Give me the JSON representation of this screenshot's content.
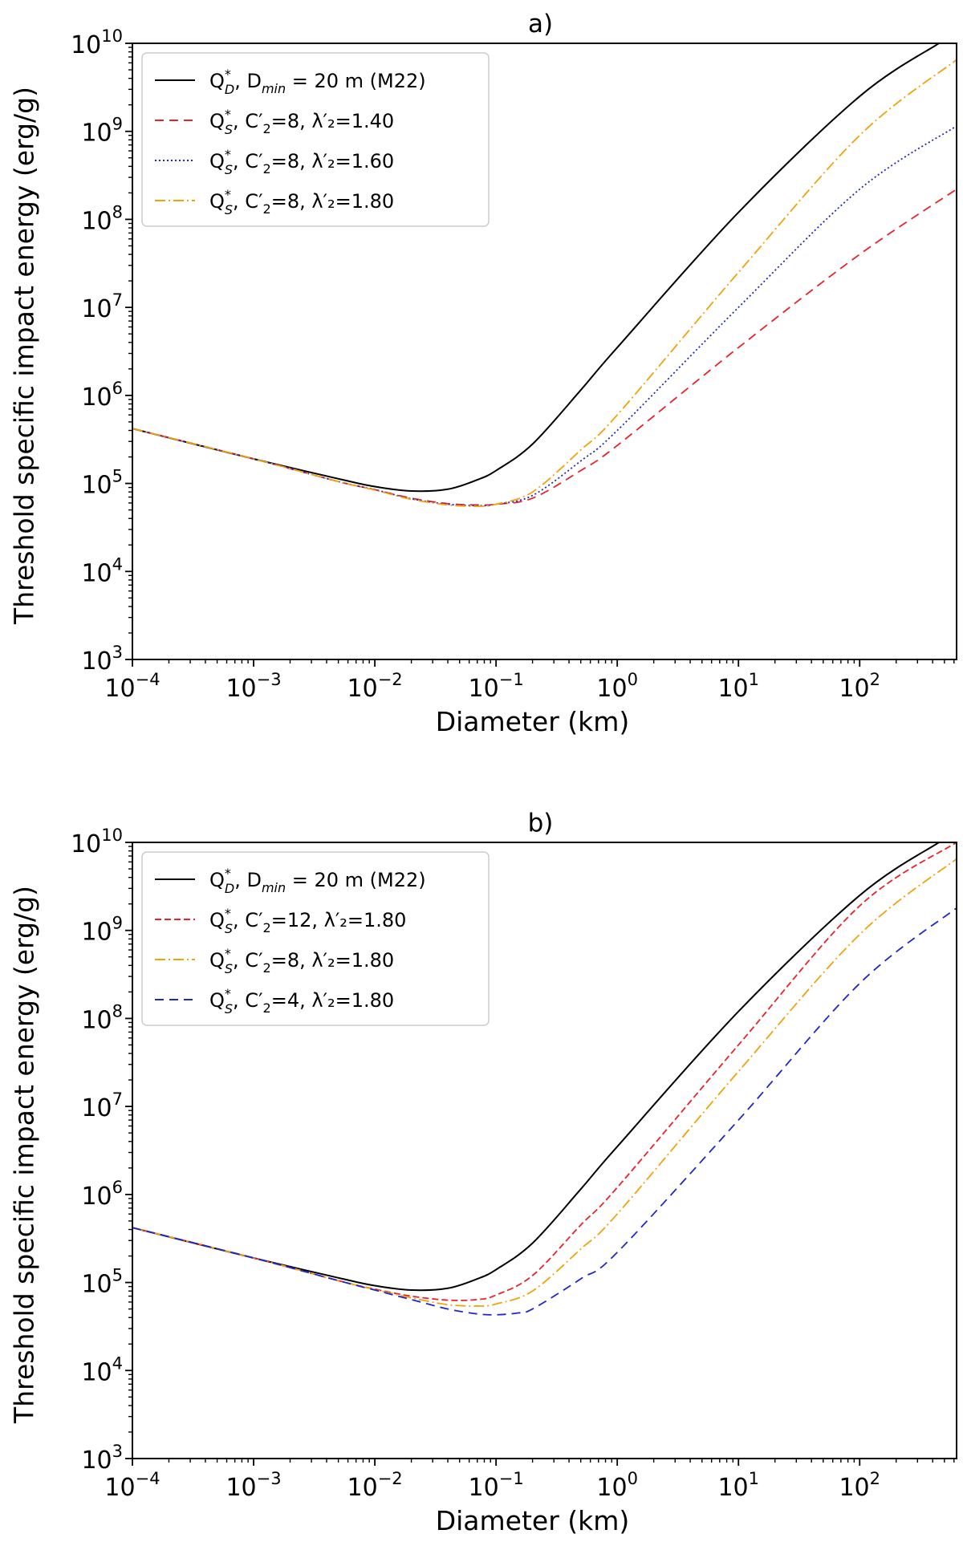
{
  "chart_data": [
    {
      "type": "line",
      "title": "a)",
      "xlabel": "Diameter (km)",
      "ylabel": "Threshold specific impact energy (erg/g)",
      "xscale": "log",
      "yscale": "log",
      "xlim": [
        0.0001,
        630
      ],
      "ylim": [
        1000,
        10000000000
      ],
      "x_ticks": [
        {
          "base": "10",
          "exp": "−4",
          "value": 0.0001
        },
        {
          "base": "10",
          "exp": "−3",
          "value": 0.001
        },
        {
          "base": "10",
          "exp": "−2",
          "value": 0.01
        },
        {
          "base": "10",
          "exp": "−1",
          "value": 0.1
        },
        {
          "base": "10",
          "exp": "0",
          "value": 1
        },
        {
          "base": "10",
          "exp": "1",
          "value": 10
        },
        {
          "base": "10",
          "exp": "2",
          "value": 100
        }
      ],
      "y_ticks": [
        {
          "base": "10",
          "exp": "3",
          "value": 1000
        },
        {
          "base": "10",
          "exp": "4",
          "value": 10000
        },
        {
          "base": "10",
          "exp": "5",
          "value": 100000
        },
        {
          "base": "10",
          "exp": "6",
          "value": 1000000
        },
        {
          "base": "10",
          "exp": "7",
          "value": 10000000
        },
        {
          "base": "10",
          "exp": "8",
          "value": 100000000
        },
        {
          "base": "10",
          "exp": "9",
          "value": 1000000000
        },
        {
          "base": "10",
          "exp": "10",
          "value": 10000000000
        }
      ],
      "legend_position": "top-left",
      "series": [
        {
          "name": "Q*D, Dmin = 20 m (M22)",
          "legend": {
            "a": "Q",
            "sup": "*",
            "sub": "D",
            "rest": ", D",
            "sub2": "min",
            "tail": " = 20 m (M22)"
          },
          "color": "#000000",
          "style": "solid",
          "x": [
            0.0001,
            0.001,
            0.005,
            0.01,
            0.02,
            0.04,
            0.07,
            0.1,
            0.2,
            0.5,
            1,
            10,
            100,
            450
          ],
          "y": [
            420000,
            190000,
            113000,
            92000,
            82000,
            86000,
            110000,
            140000,
            280000,
            1150000,
            3500000,
            120000000,
            2500000000,
            10000000000
          ]
        },
        {
          "name": "Q*S, C′2=8, λ′2=1.40",
          "legend": {
            "a": "Q",
            "sup": "*",
            "sub": "S",
            "rest": ", C′",
            "sub2": "2",
            "tail": "=8, λ′₂=1.40"
          },
          "color": "#e8232a",
          "style": "dashed",
          "x": [
            0.0001,
            0.001,
            0.005,
            0.01,
            0.02,
            0.04,
            0.07,
            0.1,
            0.2,
            0.5,
            1,
            10,
            100,
            630
          ],
          "y": [
            420000,
            190000,
            105000,
            85000,
            68000,
            59000,
            57000,
            58000,
            68000,
            140000,
            270000,
            3500000,
            40000000,
            220000000
          ]
        },
        {
          "name": "Q*S, C′2=8, λ′2=1.60",
          "legend": {
            "a": "Q",
            "sup": "*",
            "sub": "S",
            "rest": ", C′",
            "sub2": "2",
            "tail": "=8, λ′₂=1.60"
          },
          "color": "#1f27c8",
          "style": "dotted",
          "x": [
            0.0001,
            0.001,
            0.005,
            0.01,
            0.02,
            0.04,
            0.07,
            0.1,
            0.2,
            0.5,
            1,
            10,
            100,
            630
          ],
          "y": [
            420000,
            190000,
            105000,
            85000,
            67000,
            58000,
            56000,
            58000,
            73000,
            180000,
            400000,
            10000000,
            220000000,
            1150000000
          ]
        },
        {
          "name": "Q*S, C′2=8, λ′2=1.80",
          "legend": {
            "a": "Q",
            "sup": "*",
            "sub": "S",
            "rest": ", C′",
            "sub2": "2",
            "tail": "=8, λ′₂=1.80"
          },
          "color": "#f0a30a",
          "style": "dashdot",
          "x": [
            0.0001,
            0.001,
            0.005,
            0.01,
            0.02,
            0.04,
            0.07,
            0.1,
            0.2,
            0.5,
            1,
            10,
            100,
            630
          ],
          "y": [
            420000,
            190000,
            105000,
            84000,
            66000,
            57000,
            55000,
            58000,
            80000,
            240000,
            600000,
            25000000,
            900000000,
            6500000000
          ]
        }
      ]
    },
    {
      "type": "line",
      "title": "b)",
      "xlabel": "Diameter (km)",
      "ylabel": "Threshold specific impact energy (erg/g)",
      "xscale": "log",
      "yscale": "log",
      "xlim": [
        0.0001,
        630
      ],
      "ylim": [
        1000,
        10000000000
      ],
      "x_ticks": [
        {
          "base": "10",
          "exp": "−4",
          "value": 0.0001
        },
        {
          "base": "10",
          "exp": "−3",
          "value": 0.001
        },
        {
          "base": "10",
          "exp": "−2",
          "value": 0.01
        },
        {
          "base": "10",
          "exp": "−1",
          "value": 0.1
        },
        {
          "base": "10",
          "exp": "0",
          "value": 1
        },
        {
          "base": "10",
          "exp": "1",
          "value": 10
        },
        {
          "base": "10",
          "exp": "2",
          "value": 100
        }
      ],
      "y_ticks": [
        {
          "base": "10",
          "exp": "3",
          "value": 1000
        },
        {
          "base": "10",
          "exp": "4",
          "value": 10000
        },
        {
          "base": "10",
          "exp": "5",
          "value": 100000
        },
        {
          "base": "10",
          "exp": "6",
          "value": 1000000
        },
        {
          "base": "10",
          "exp": "7",
          "value": 10000000
        },
        {
          "base": "10",
          "exp": "8",
          "value": 100000000
        },
        {
          "base": "10",
          "exp": "9",
          "value": 1000000000
        },
        {
          "base": "10",
          "exp": "10",
          "value": 10000000000
        }
      ],
      "legend_position": "top-left",
      "series": [
        {
          "name": "Q*D, Dmin = 20 m (M22)",
          "legend": {
            "a": "Q",
            "sup": "*",
            "sub": "D",
            "rest": ", D",
            "sub2": "min",
            "tail": " = 20 m (M22)"
          },
          "color": "#000000",
          "style": "solid",
          "x": [
            0.0001,
            0.001,
            0.005,
            0.01,
            0.02,
            0.04,
            0.07,
            0.1,
            0.2,
            0.5,
            1,
            10,
            100,
            450
          ],
          "y": [
            420000,
            190000,
            113000,
            92000,
            82000,
            86000,
            110000,
            140000,
            280000,
            1150000,
            3500000,
            120000000,
            2500000000,
            10000000000
          ]
        },
        {
          "name": "Q*S, C′2=12, λ′2=1.80",
          "legend": {
            "a": "Q",
            "sup": "*",
            "sub": "S",
            "rest": ", C′",
            "sub2": "2",
            "tail": "=12, λ′₂=1.80"
          },
          "color": "#e8232a",
          "style": "dashed-short",
          "x": [
            0.0001,
            0.001,
            0.005,
            0.01,
            0.02,
            0.04,
            0.07,
            0.1,
            0.2,
            0.5,
            1,
            10,
            100,
            630
          ],
          "y": [
            420000,
            190000,
            105000,
            84000,
            70000,
            63000,
            64000,
            72000,
            120000,
            450000,
            1200000,
            50000000,
            1900000000,
            10000000000
          ]
        },
        {
          "name": "Q*S, C′2=8, λ′2=1.80",
          "legend": {
            "a": "Q",
            "sup": "*",
            "sub": "S",
            "rest": ", C′",
            "sub2": "2",
            "tail": "=8, λ′₂=1.80"
          },
          "color": "#f0a30a",
          "style": "dashdot",
          "x": [
            0.0001,
            0.001,
            0.005,
            0.01,
            0.02,
            0.04,
            0.07,
            0.1,
            0.2,
            0.5,
            1,
            10,
            100,
            630
          ],
          "y": [
            420000,
            190000,
            105000,
            83000,
            67000,
            56000,
            54000,
            57000,
            80000,
            240000,
            600000,
            25000000,
            900000000,
            6500000000
          ]
        },
        {
          "name": "Q*S, C′2=4, λ′2=1.80",
          "legend": {
            "a": "Q",
            "sup": "*",
            "sub": "S",
            "rest": ", C′",
            "sub2": "2",
            "tail": "=4, λ′₂=1.80"
          },
          "color": "#1f27c8",
          "style": "dashed",
          "x": [
            0.0001,
            0.001,
            0.005,
            0.01,
            0.02,
            0.04,
            0.07,
            0.1,
            0.15,
            0.2,
            0.5,
            1,
            10,
            100,
            630
          ],
          "y": [
            420000,
            190000,
            105000,
            82000,
            64000,
            50000,
            44000,
            43000,
            45000,
            50000,
            110000,
            220000,
            7000000,
            250000000,
            1800000000
          ]
        }
      ]
    }
  ]
}
